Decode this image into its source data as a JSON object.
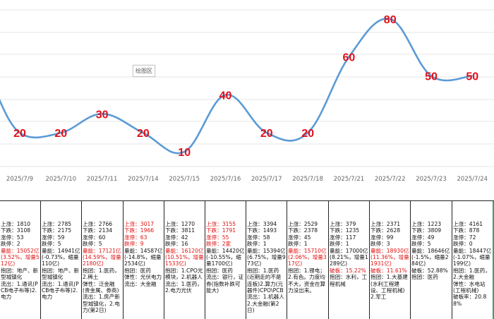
{
  "chart_data": {
    "type": "line",
    "categories": [
      "2025/7/9",
      "2025/7/10",
      "2025/7/11",
      "2025/7/14",
      "2025/7/15",
      "2025/7/16",
      "2025/7/17",
      "2025/7/18",
      "2025/7/21",
      "2025/7/22",
      "2025/7/23",
      "2025/7/24"
    ],
    "series": [
      {
        "values": [
          20,
          20,
          30,
          20,
          10,
          40,
          20,
          20,
          60,
          80,
          50,
          50
        ]
      }
    ],
    "ylim": [
      0,
      90
    ],
    "grid": true,
    "line_color": "#5b9bd5",
    "label_color": "#e0101a"
  },
  "placeholder_label": "绘图区",
  "columns": [
    {
      "date": "2025/7/9",
      "lines": [
        {
          "t": "上涨：1810"
        },
        {
          "t": "下跌：3108"
        },
        {
          "t": "涨停：53"
        },
        {
          "t": "跌停：2"
        },
        {
          "t": "量能：15052亿(3.52%，增量512亿)",
          "red": true
        },
        {
          "t": "抱团：地产、新型城镇化"
        },
        {
          "t": "流出：1.通讯(PCB电子布等)2.电力"
        }
      ]
    },
    {
      "date": "2025/7/10",
      "lines": [
        {
          "t": "上涨：2785"
        },
        {
          "t": "下跌：2175"
        },
        {
          "t": "涨停：59"
        },
        {
          "t": "跌停：5"
        },
        {
          "t": "量能：14941亿(-0.73%，缩量110亿)"
        },
        {
          "t": "抱团：地产、新型城镇化"
        },
        {
          "t": "流出：1.通讯(PCB电子布等)2.电力"
        }
      ]
    },
    {
      "date": "2025/7/11",
      "lines": [
        {
          "t": "上涨：2766"
        },
        {
          "t": "下跌：2134"
        },
        {
          "t": "涨停：60"
        },
        {
          "t": "跌停：5"
        },
        {
          "t": "量能：17121亿(14.59%，增量2180亿)",
          "red": true
        },
        {
          "t": "抱团：1.医药，2.稀土"
        },
        {
          "t": "弹性：泛金融(贵金属、券商)"
        },
        {
          "t": "流出：1.房产新型城镇化，2.电力(第2日)"
        }
      ]
    },
    {
      "date": "2025/7/14",
      "lines": [
        {
          "t": "上涨：3017",
          "red": true
        },
        {
          "t": "下跌：1966",
          "red": true
        },
        {
          "t": "涨停：63",
          "red": true
        },
        {
          "t": "跌停：9",
          "red": true
        },
        {
          "t": "量能：14587亿(-14.8%，缩量2534亿)"
        },
        {
          "t": "抱团：医药"
        },
        {
          "t": "弹性：光伏电力"
        },
        {
          "t": "流出：大金融"
        }
      ]
    },
    {
      "date": "2025/7/15",
      "lines": [
        {
          "t": "上涨：1270"
        },
        {
          "t": "下跌：3811"
        },
        {
          "t": "涨停：42"
        },
        {
          "t": "跌停：16"
        },
        {
          "t": "量能：16120亿(10.51%，增量1533亿)",
          "red": true
        },
        {
          "t": "抱团：1.CPO光模块，2.机器人"
        },
        {
          "t": "流出：1.医药，2.电力光伏"
        }
      ]
    },
    {
      "date": "2025/7/16",
      "lines": [
        {
          "t": "上涨：3155",
          "red": true
        },
        {
          "t": "下跌：1791",
          "red": true
        },
        {
          "t": "涨停：55",
          "red": true
        },
        {
          "t": "跌停：2家",
          "red": true
        },
        {
          "t": "量能：14420亿(-10.55%，缩量1700亿)"
        },
        {
          "t": "抱团：医药"
        },
        {
          "t": "流出：银行，证券(指数补跌可能大)"
        }
      ]
    },
    {
      "date": "2025/7/17",
      "lines": [
        {
          "t": "上涨：3394"
        },
        {
          "t": "下跌：1493"
        },
        {
          "t": "涨停：58"
        },
        {
          "t": "跌停：1"
        },
        {
          "t": "量能：15394亿(6.75%，增量973亿)"
        },
        {
          "t": "抱团：1.医药(近期走的不是连板)2.算力(元器件)CPO\\PCB"
        },
        {
          "t": "流出：1.机器人2.大金融(第2日)"
        }
      ]
    },
    {
      "date": "2025/7/18",
      "lines": [
        {
          "t": "上涨：2529"
        },
        {
          "t": "下跌：2378"
        },
        {
          "t": "涨停：45"
        },
        {
          "t": "跌停：1"
        },
        {
          "t": "量能：15710亿(2.06%，增量317亿)",
          "red": true
        },
        {
          "t": "抱团：1.锂电；2.有色。力度均不大，资金在算力没出来。"
        }
      ]
    },
    {
      "date": "2025/7/21",
      "lines": [
        {
          "t": "上涨：379"
        },
        {
          "t": "下跌：1235"
        },
        {
          "t": "涨停：117"
        },
        {
          "t": "跌停：1"
        },
        {
          "t": "量能：17000亿(8.21%，增量1289亿)"
        },
        {
          "t": "破板：15.22%",
          "red": true
        },
        {
          "t": "抱团：水利，工程机械"
        }
      ]
    },
    {
      "date": "2025/7/22",
      "lines": [
        {
          "t": "上涨：2371"
        },
        {
          "t": "下跌：2628"
        },
        {
          "t": "涨停：99"
        },
        {
          "t": "跌停：3"
        },
        {
          "t": "量能：18930亿(11.36%，增量1931亿)",
          "red": true
        },
        {
          "t": "破板：11.61%",
          "red": true
        },
        {
          "t": "抱团：1.大基建(水利工程建设、工程机械)2.军工"
        }
      ]
    },
    {
      "date": "2025/7/23",
      "lines": [
        {
          "t": "上涨：1223"
        },
        {
          "t": "下跌：3809"
        },
        {
          "t": "涨停：49"
        },
        {
          "t": "跌停：5"
        },
        {
          "t": "量能：18646亿(-1.5%，缩量284亿)"
        },
        {
          "t": "破板：52.88%"
        },
        {
          "t": "抱团：医药"
        }
      ]
    },
    {
      "date": "2025/7/24",
      "lines": [
        {
          "t": "上涨：4161"
        },
        {
          "t": "下跌：878"
        },
        {
          "t": "涨停：72"
        },
        {
          "t": "跌停：0"
        },
        {
          "t": "量能：18447亿(-1.07%，缩量199亿)"
        },
        {
          "t": "抱团：1.医药，2.大金融"
        },
        {
          "t": "弹性：水电站(工程机械)"
        },
        {
          "t": "破板率：20.88%"
        }
      ]
    }
  ]
}
